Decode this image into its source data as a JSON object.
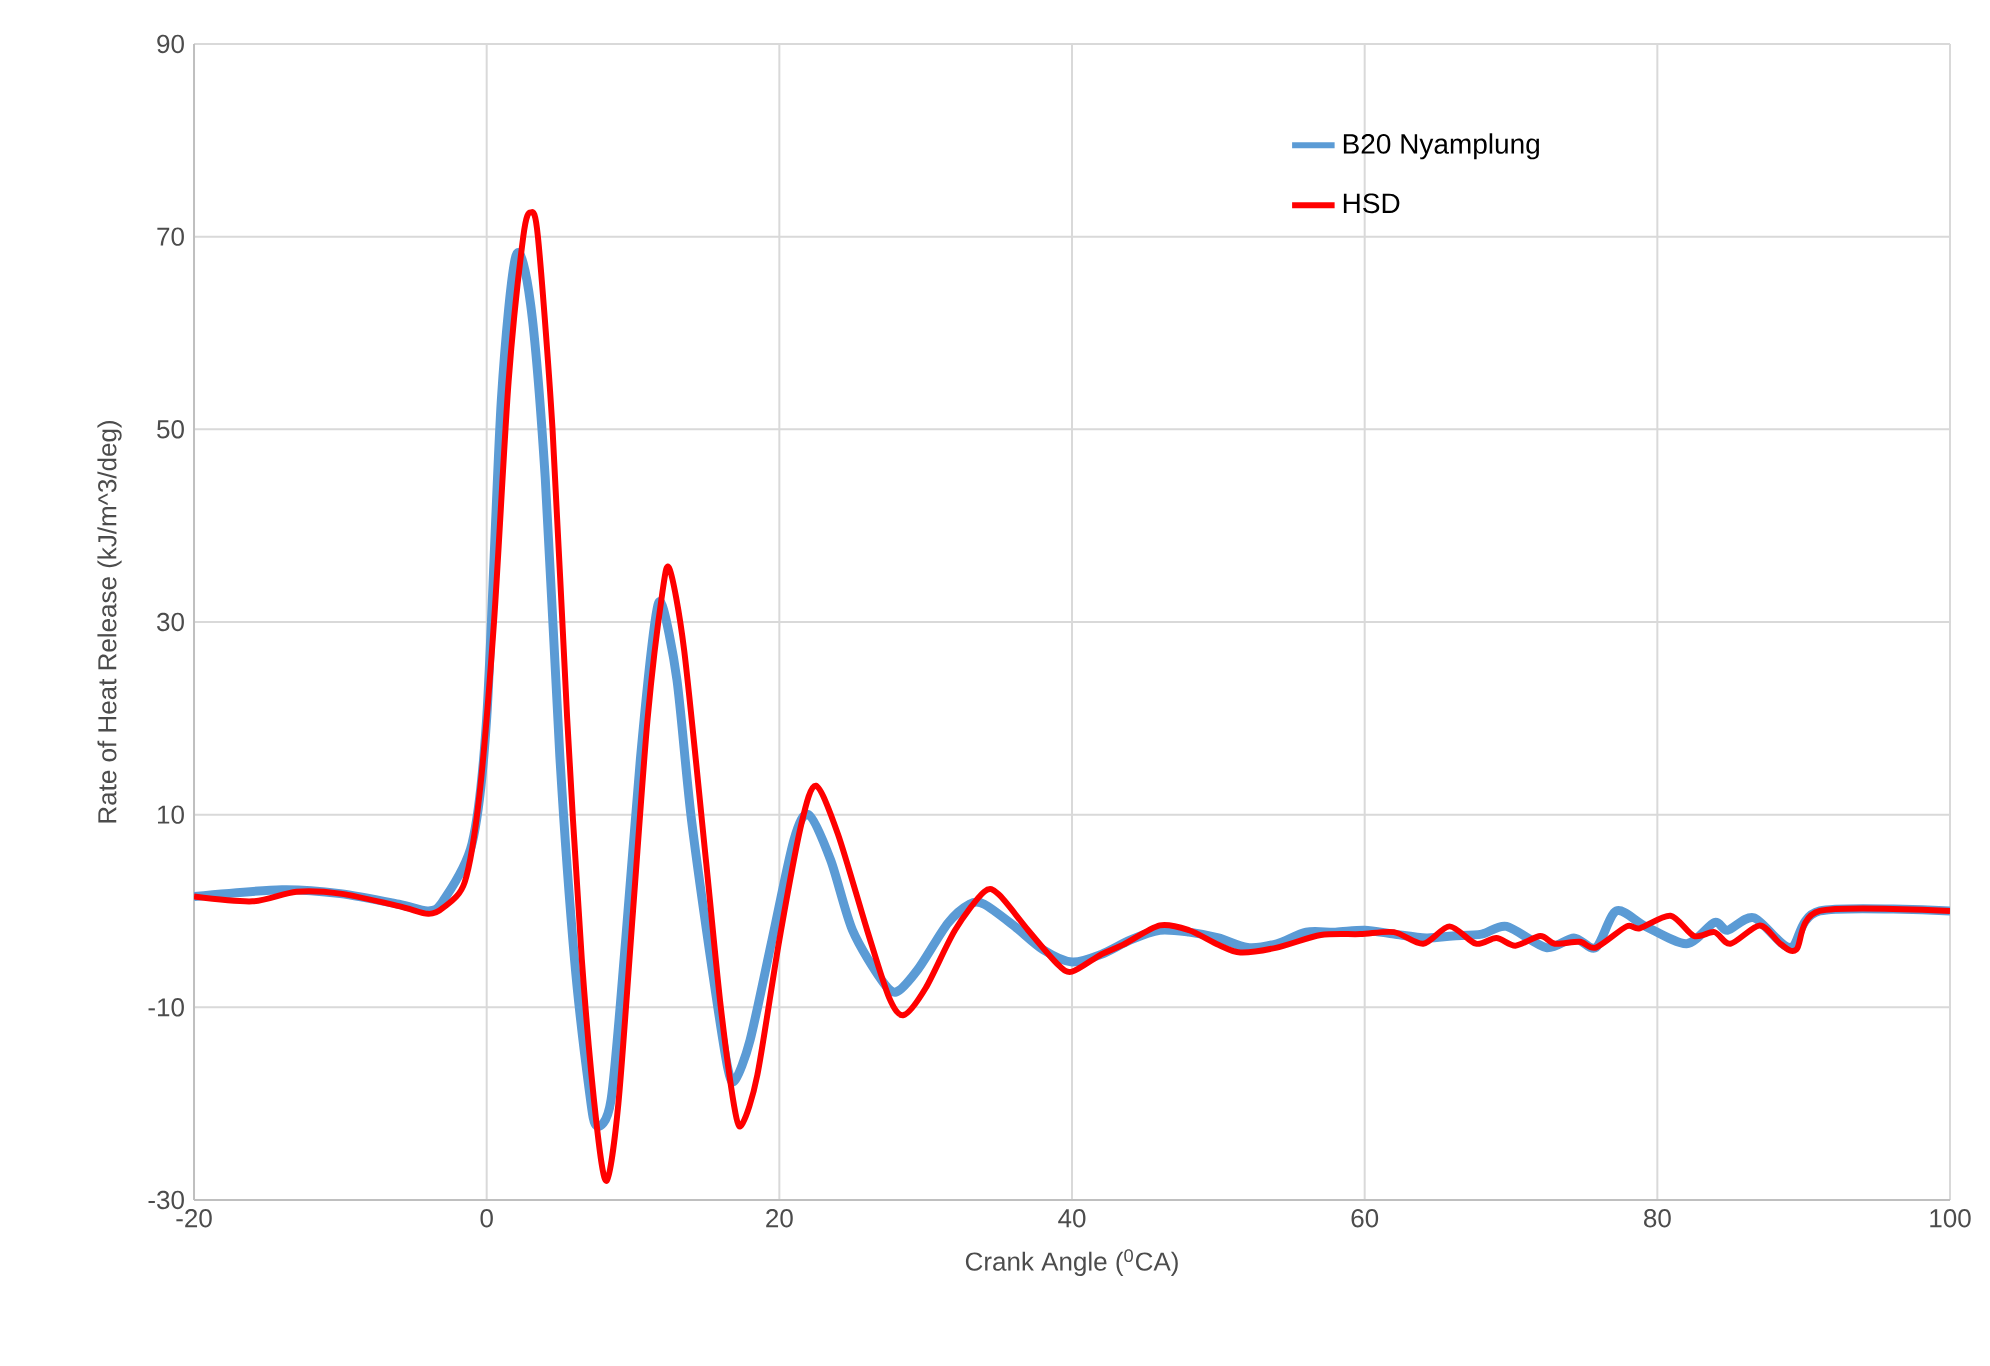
{
  "chart_data": {
    "type": "line",
    "xlabel": "Crank Angle ($^{0}$CA)",
    "ylabel": "Rate of Heat Release (kJ/m^3/deg)",
    "xlim": [
      -20,
      100
    ],
    "xticks": [
      -20,
      0,
      20,
      40,
      60,
      80,
      100
    ],
    "ylim": [
      -30,
      90
    ],
    "yticks": [
      -30,
      -10,
      10,
      30,
      50,
      70,
      90
    ],
    "grid": true,
    "legend": "top right",
    "marker": "none",
    "line_style": "solid",
    "series": [
      {
        "name": "B20 Nyamplung",
        "color": "#5b9bd5",
        "x": [
          -20,
          -14,
          -10,
          -6,
          -4,
          -3,
          -1,
          0,
          1,
          2,
          3,
          4,
          5,
          6,
          7,
          7.5,
          8.5,
          9.5,
          10.5,
          11.5,
          12,
          13,
          14,
          15.5,
          16.5,
          17,
          18,
          19.5,
          21,
          22,
          23.5,
          25,
          27,
          28,
          29.5,
          31.5,
          33,
          34,
          36,
          38,
          40,
          42,
          44,
          46,
          48,
          50,
          52,
          54,
          56,
          58,
          60,
          62,
          64.2,
          66,
          68,
          69.7,
          72.4,
          74.3,
          75.8,
          77.2,
          79.2,
          82,
          83.9,
          84.8,
          86.6,
          89.1,
          91.1,
          100
        ],
        "values": [
          1.5,
          2.2,
          1.8,
          0.7,
          0,
          1,
          7,
          20,
          53,
          68,
          63,
          45,
          16,
          -5,
          -18.5,
          -22.3,
          -19.6,
          -3,
          15.7,
          30,
          31.7,
          24,
          9.4,
          -7,
          -16.5,
          -17.5,
          -13.4,
          -3,
          7.4,
          10,
          5.3,
          -2,
          -7.2,
          -8.4,
          -6,
          -1.3,
          0.7,
          0.7,
          -1.5,
          -4,
          -5.3,
          -4.5,
          -3,
          -2,
          -2.2,
          -2.8,
          -3.8,
          -3.4,
          -2.2,
          -2.2,
          -2,
          -2.4,
          -2.8,
          -2.6,
          -2.4,
          -1.6,
          -3.8,
          -2.8,
          -3.8,
          0,
          -1.6,
          -3.4,
          -1.2,
          -2,
          -0.7,
          -3.8,
          0,
          0
        ]
      },
      {
        "name": "HSD",
        "color": "#ff0000",
        "x": [
          -20,
          -16,
          -13,
          -10,
          -6,
          -4,
          -3,
          -1.5,
          -0.5,
          0.5,
          1.5,
          2.5,
          3,
          3.5,
          4.5,
          5.5,
          6.5,
          7.5,
          8.2,
          9,
          10,
          11,
          12,
          12.5,
          13.5,
          15,
          16,
          17,
          17.5,
          18.5,
          20,
          21.5,
          22.5,
          24,
          26,
          27.5,
          28.5,
          30,
          32,
          34,
          35,
          37,
          39,
          40,
          42,
          43.5,
          46,
          48,
          50,
          51.5,
          54,
          57,
          59.7,
          62,
          64,
          65.8,
          67.6,
          69,
          70.3,
          72,
          73,
          74.7,
          75.8,
          77.9,
          78.8,
          80.9,
          82.5,
          83.9,
          85,
          87,
          88.4,
          89.5,
          91.1,
          100
        ],
        "values": [
          1.5,
          1.0,
          2,
          1.8,
          0.5,
          -0.3,
          0.3,
          3,
          12,
          30,
          55,
          70,
          72.5,
          70,
          50,
          20,
          -5,
          -22,
          -28,
          -20,
          0,
          20,
          33,
          35.5,
          27,
          5,
          -10,
          -21,
          -22,
          -17,
          -3,
          9,
          13,
          8,
          -2,
          -9,
          -10.8,
          -8,
          -2,
          2,
          1.7,
          -2,
          -5.5,
          -6.3,
          -4.5,
          -3.5,
          -1.5,
          -2,
          -3.5,
          -4.3,
          -3.8,
          -2.5,
          -2.4,
          -2.2,
          -3.4,
          -1.6,
          -3.4,
          -2.8,
          -3.6,
          -2.6,
          -3.4,
          -3.2,
          -3.8,
          -1.6,
          -1.8,
          -0.5,
          -2.6,
          -2.2,
          -3.4,
          -1.5,
          -3.4,
          -4,
          0,
          0
        ]
      }
    ]
  }
}
